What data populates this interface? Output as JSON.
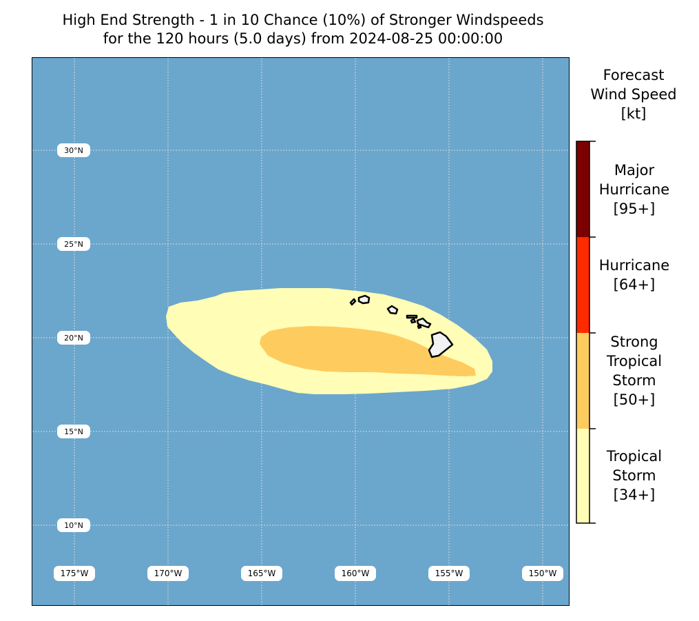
{
  "title_line1": "High End Strength - 1 in 10 Chance (10%) of Stronger Windspeeds",
  "title_line2": "for the 120 hours (5.0 days) from 2024-08-25 00:00:00",
  "colors": {
    "ocean": "#6ba6cc",
    "tropical_storm": "#fffdb6",
    "strong_tropical_storm": "#fecb5e",
    "hurricane": "#fe2a00",
    "major_hurricane": "#7d0000",
    "land": "#f2f2f2",
    "grid": "#d9d9d9"
  },
  "lat_labels": [
    "30°N",
    "25°N",
    "20°N",
    "15°N",
    "10°N"
  ],
  "lon_labels": [
    "175°W",
    "170°W",
    "165°W",
    "160°W",
    "155°W",
    "150°W"
  ],
  "colorbar": {
    "title_line1": "Forecast",
    "title_line2": "Wind Speed",
    "title_line3": "[kt]",
    "categories": [
      {
        "name_line1": "Major",
        "name_line2": "Hurricane",
        "name_line3": "",
        "threshold": "[95+]"
      },
      {
        "name_line1": "Hurricane",
        "name_line2": "",
        "name_line3": "",
        "threshold": "[64+]"
      },
      {
        "name_line1": "Strong",
        "name_line2": "Tropical",
        "name_line3": "Storm",
        "threshold": "[50+]"
      },
      {
        "name_line1": "Tropical",
        "name_line2": "Storm",
        "name_line3": "",
        "threshold": "[34+]"
      }
    ]
  }
}
